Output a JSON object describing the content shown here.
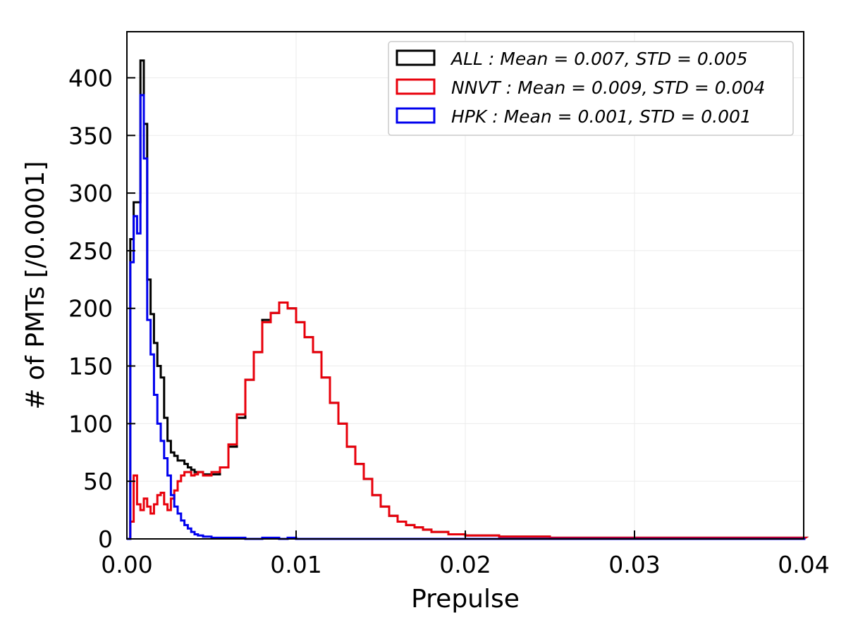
{
  "chart_data": {
    "type": "histogram",
    "title": "",
    "xlabel": "Prepulse",
    "ylabel": "# of PMTs [/0.0001]",
    "xlim": [
      0,
      0.04
    ],
    "ylim": [
      0,
      440
    ],
    "grid": true,
    "legend_position": "top-right",
    "xticks": [
      0,
      0.01,
      0.02,
      0.03,
      0.04
    ],
    "xtick_labels": [
      "0.00",
      "0.01",
      "0.02",
      "0.03",
      "0.04"
    ],
    "yticks": [
      0,
      50,
      100,
      150,
      200,
      250,
      300,
      350,
      400
    ],
    "ytick_labels": [
      "0",
      "50",
      "100",
      "150",
      "200",
      "250",
      "300",
      "350",
      "400"
    ],
    "bin_width": 0.0001,
    "series": [
      {
        "name": "ALL",
        "legend": "ALL : Mean = 0.007, STD = 0.005",
        "color": "#000000",
        "points": [
          [
            0.0,
            0
          ],
          [
            0.0002,
            260
          ],
          [
            0.0004,
            292
          ],
          [
            0.0006,
            292
          ],
          [
            0.0008,
            415
          ],
          [
            0.001,
            360
          ],
          [
            0.0012,
            225
          ],
          [
            0.0014,
            195
          ],
          [
            0.0016,
            170
          ],
          [
            0.0018,
            150
          ],
          [
            0.002,
            140
          ],
          [
            0.0022,
            105
          ],
          [
            0.0024,
            85
          ],
          [
            0.0026,
            75
          ],
          [
            0.0028,
            72
          ],
          [
            0.003,
            68
          ],
          [
            0.0032,
            68
          ],
          [
            0.0034,
            65
          ],
          [
            0.0036,
            62
          ],
          [
            0.0038,
            60
          ],
          [
            0.004,
            58
          ],
          [
            0.0042,
            58
          ],
          [
            0.0045,
            56
          ],
          [
            0.005,
            56
          ],
          [
            0.0055,
            62
          ],
          [
            0.006,
            80
          ],
          [
            0.0065,
            105
          ],
          [
            0.007,
            138
          ],
          [
            0.0075,
            162
          ],
          [
            0.008,
            190
          ],
          [
            0.0085,
            196
          ],
          [
            0.009,
            205
          ],
          [
            0.0095,
            200
          ],
          [
            0.01,
            188
          ],
          [
            0.0105,
            175
          ],
          [
            0.011,
            162
          ],
          [
            0.0115,
            140
          ],
          [
            0.012,
            118
          ],
          [
            0.0125,
            100
          ],
          [
            0.013,
            80
          ],
          [
            0.0135,
            65
          ],
          [
            0.014,
            52
          ],
          [
            0.0145,
            38
          ],
          [
            0.015,
            28
          ],
          [
            0.0155,
            20
          ],
          [
            0.016,
            15
          ],
          [
            0.0165,
            12
          ],
          [
            0.017,
            10
          ],
          [
            0.0175,
            8
          ],
          [
            0.018,
            6
          ],
          [
            0.019,
            4
          ],
          [
            0.02,
            3
          ],
          [
            0.021,
            3
          ],
          [
            0.022,
            2
          ],
          [
            0.023,
            2
          ],
          [
            0.025,
            1
          ],
          [
            0.028,
            1
          ],
          [
            0.031,
            1
          ],
          [
            0.034,
            1
          ],
          [
            0.037,
            1
          ],
          [
            0.04,
            1
          ]
        ]
      },
      {
        "name": "NNVT",
        "legend": "NNVT : Mean = 0.009, STD = 0.004",
        "color": "#e8000b",
        "points": [
          [
            0.0,
            0
          ],
          [
            0.0002,
            15
          ],
          [
            0.0004,
            55
          ],
          [
            0.0006,
            30
          ],
          [
            0.0008,
            25
          ],
          [
            0.001,
            35
          ],
          [
            0.0012,
            28
          ],
          [
            0.0014,
            22
          ],
          [
            0.0016,
            30
          ],
          [
            0.0018,
            38
          ],
          [
            0.002,
            40
          ],
          [
            0.0022,
            30
          ],
          [
            0.0024,
            25
          ],
          [
            0.0026,
            35
          ],
          [
            0.0028,
            42
          ],
          [
            0.003,
            50
          ],
          [
            0.0032,
            55
          ],
          [
            0.0034,
            58
          ],
          [
            0.0036,
            58
          ],
          [
            0.0038,
            55
          ],
          [
            0.004,
            56
          ],
          [
            0.0042,
            58
          ],
          [
            0.0045,
            55
          ],
          [
            0.005,
            58
          ],
          [
            0.0055,
            62
          ],
          [
            0.006,
            82
          ],
          [
            0.0065,
            108
          ],
          [
            0.007,
            138
          ],
          [
            0.0075,
            162
          ],
          [
            0.008,
            188
          ],
          [
            0.0085,
            196
          ],
          [
            0.009,
            205
          ],
          [
            0.0095,
            200
          ],
          [
            0.01,
            188
          ],
          [
            0.0105,
            175
          ],
          [
            0.011,
            162
          ],
          [
            0.0115,
            140
          ],
          [
            0.012,
            118
          ],
          [
            0.0125,
            100
          ],
          [
            0.013,
            80
          ],
          [
            0.0135,
            65
          ],
          [
            0.014,
            52
          ],
          [
            0.0145,
            38
          ],
          [
            0.015,
            28
          ],
          [
            0.0155,
            20
          ],
          [
            0.016,
            15
          ],
          [
            0.0165,
            12
          ],
          [
            0.017,
            10
          ],
          [
            0.0175,
            8
          ],
          [
            0.018,
            6
          ],
          [
            0.019,
            4
          ],
          [
            0.02,
            3
          ],
          [
            0.021,
            3
          ],
          [
            0.022,
            2
          ],
          [
            0.023,
            2
          ],
          [
            0.025,
            1
          ],
          [
            0.028,
            1
          ],
          [
            0.031,
            1
          ],
          [
            0.034,
            1
          ],
          [
            0.037,
            1
          ],
          [
            0.04,
            1
          ]
        ]
      },
      {
        "name": "HPK",
        "legend": "HPK : Mean = 0.001, STD = 0.001",
        "color": "#0000ee",
        "points": [
          [
            0.0,
            0
          ],
          [
            0.0002,
            240
          ],
          [
            0.0004,
            280
          ],
          [
            0.0006,
            265
          ],
          [
            0.0008,
            385
          ],
          [
            0.001,
            330
          ],
          [
            0.0012,
            190
          ],
          [
            0.0014,
            160
          ],
          [
            0.0016,
            125
          ],
          [
            0.0018,
            100
          ],
          [
            0.002,
            85
          ],
          [
            0.0022,
            70
          ],
          [
            0.0024,
            55
          ],
          [
            0.0026,
            38
          ],
          [
            0.0028,
            28
          ],
          [
            0.003,
            22
          ],
          [
            0.0032,
            16
          ],
          [
            0.0034,
            12
          ],
          [
            0.0036,
            9
          ],
          [
            0.0038,
            6
          ],
          [
            0.004,
            4
          ],
          [
            0.0042,
            3
          ],
          [
            0.0045,
            2
          ],
          [
            0.005,
            1
          ],
          [
            0.006,
            1
          ],
          [
            0.007,
            0
          ],
          [
            0.008,
            1
          ],
          [
            0.009,
            0
          ],
          [
            0.0095,
            1
          ],
          [
            0.01,
            0
          ],
          [
            0.04,
            0
          ]
        ]
      }
    ]
  }
}
